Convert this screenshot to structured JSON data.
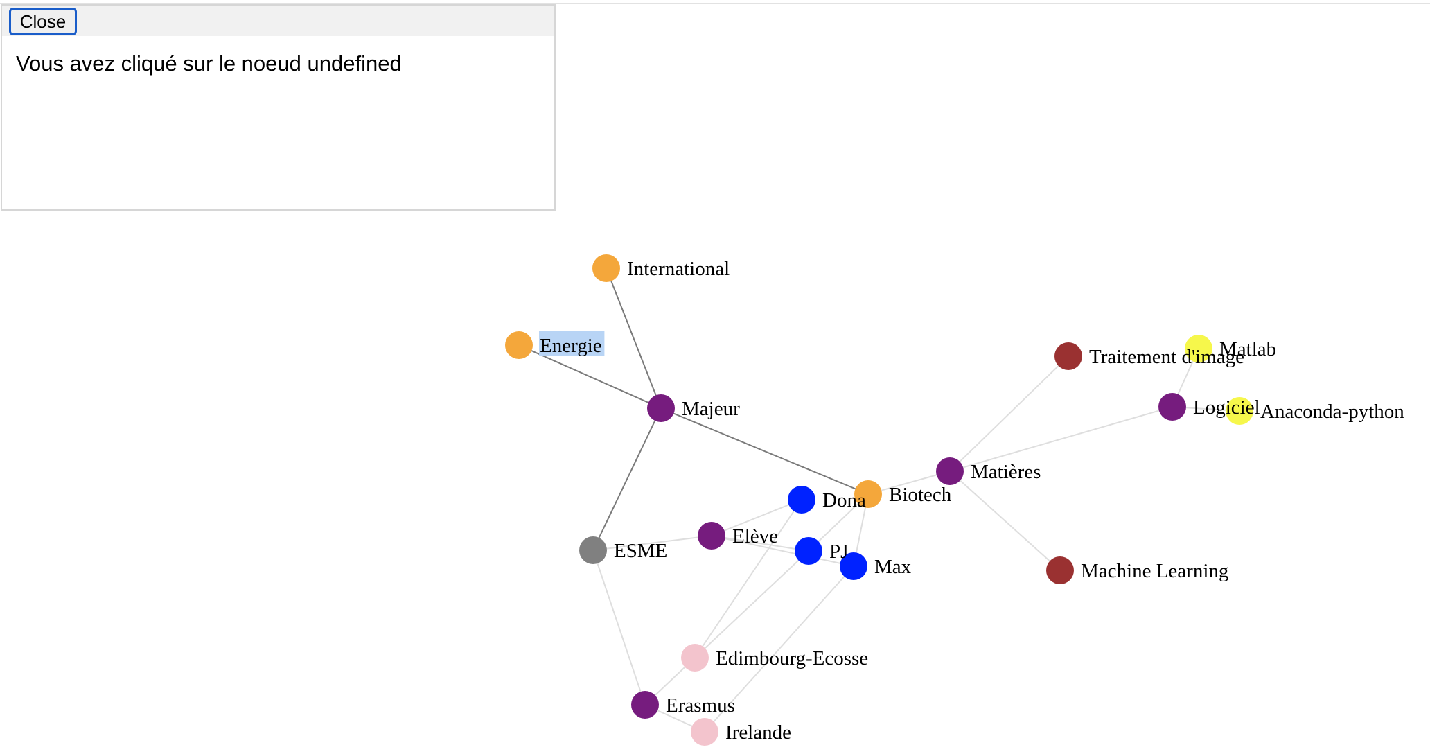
{
  "popup": {
    "close_label": "Close",
    "message": "Vous avez cliqué sur le noeud undefined"
  },
  "graph": {
    "colors": {
      "orange": "#f4a73b",
      "purple": "#761c7e",
      "gray": "#808080",
      "blue": "#0022ff",
      "pink": "#f3c4cd",
      "brown": "#9a3131",
      "yellow": "#f6f74b",
      "dark_edge": "#7a7a7a",
      "light_edge": "#dedede",
      "selection": "#b8d4f5"
    },
    "selected_label": "Energie",
    "nodes": [
      {
        "id": "international",
        "label": "International",
        "color": "orange"
      },
      {
        "id": "energie",
        "label": "Energie",
        "color": "orange"
      },
      {
        "id": "majeur",
        "label": "Majeur",
        "color": "purple"
      },
      {
        "id": "biotech",
        "label": "Biotech",
        "color": "orange"
      },
      {
        "id": "esme",
        "label": "ESME",
        "color": "gray"
      },
      {
        "id": "eleve",
        "label": "Elève",
        "color": "purple"
      },
      {
        "id": "dona",
        "label": "Dona",
        "color": "blue"
      },
      {
        "id": "pj",
        "label": "PJ",
        "color": "blue"
      },
      {
        "id": "max",
        "label": "Max",
        "color": "blue"
      },
      {
        "id": "edimbourg",
        "label": "Edimbourg-Ecosse",
        "color": "pink"
      },
      {
        "id": "erasmus",
        "label": "Erasmus",
        "color": "purple"
      },
      {
        "id": "irelande",
        "label": "Irelande",
        "color": "pink"
      },
      {
        "id": "matieres",
        "label": "Matières",
        "color": "purple"
      },
      {
        "id": "traitement",
        "label": "Traitement d'image",
        "color": "brown"
      },
      {
        "id": "logiciel",
        "label": "Logiciel",
        "color": "purple"
      },
      {
        "id": "matlab",
        "label": "Matlab",
        "color": "yellow"
      },
      {
        "id": "anaconda",
        "label": "Anaconda-python",
        "color": "yellow"
      },
      {
        "id": "ml",
        "label": "Machine Learning",
        "color": "brown"
      }
    ],
    "edges": [
      {
        "source": "international",
        "target": "majeur",
        "style": "dark"
      },
      {
        "source": "energie",
        "target": "majeur",
        "style": "dark"
      },
      {
        "source": "biotech",
        "target": "majeur",
        "style": "dark"
      },
      {
        "source": "esme",
        "target": "majeur",
        "style": "dark"
      },
      {
        "source": "esme",
        "target": "eleve",
        "style": "light"
      },
      {
        "source": "esme",
        "target": "erasmus",
        "style": "light"
      },
      {
        "source": "eleve",
        "target": "dona",
        "style": "light"
      },
      {
        "source": "eleve",
        "target": "pj",
        "style": "light"
      },
      {
        "source": "eleve",
        "target": "max",
        "style": "light"
      },
      {
        "source": "dona",
        "target": "edimbourg",
        "style": "light"
      },
      {
        "source": "pj",
        "target": "edimbourg",
        "style": "light"
      },
      {
        "source": "pj",
        "target": "biotech",
        "style": "light"
      },
      {
        "source": "max",
        "target": "biotech",
        "style": "light"
      },
      {
        "source": "max",
        "target": "irelande",
        "style": "light"
      },
      {
        "source": "edimbourg",
        "target": "erasmus",
        "style": "light"
      },
      {
        "source": "erasmus",
        "target": "irelande",
        "style": "light"
      },
      {
        "source": "biotech",
        "target": "matieres",
        "style": "light"
      },
      {
        "source": "matieres",
        "target": "traitement",
        "style": "light"
      },
      {
        "source": "matieres",
        "target": "logiciel",
        "style": "light"
      },
      {
        "source": "matieres",
        "target": "ml",
        "style": "light"
      },
      {
        "source": "logiciel",
        "target": "matlab",
        "style": "light"
      },
      {
        "source": "logiciel",
        "target": "anaconda",
        "style": "light"
      }
    ]
  }
}
